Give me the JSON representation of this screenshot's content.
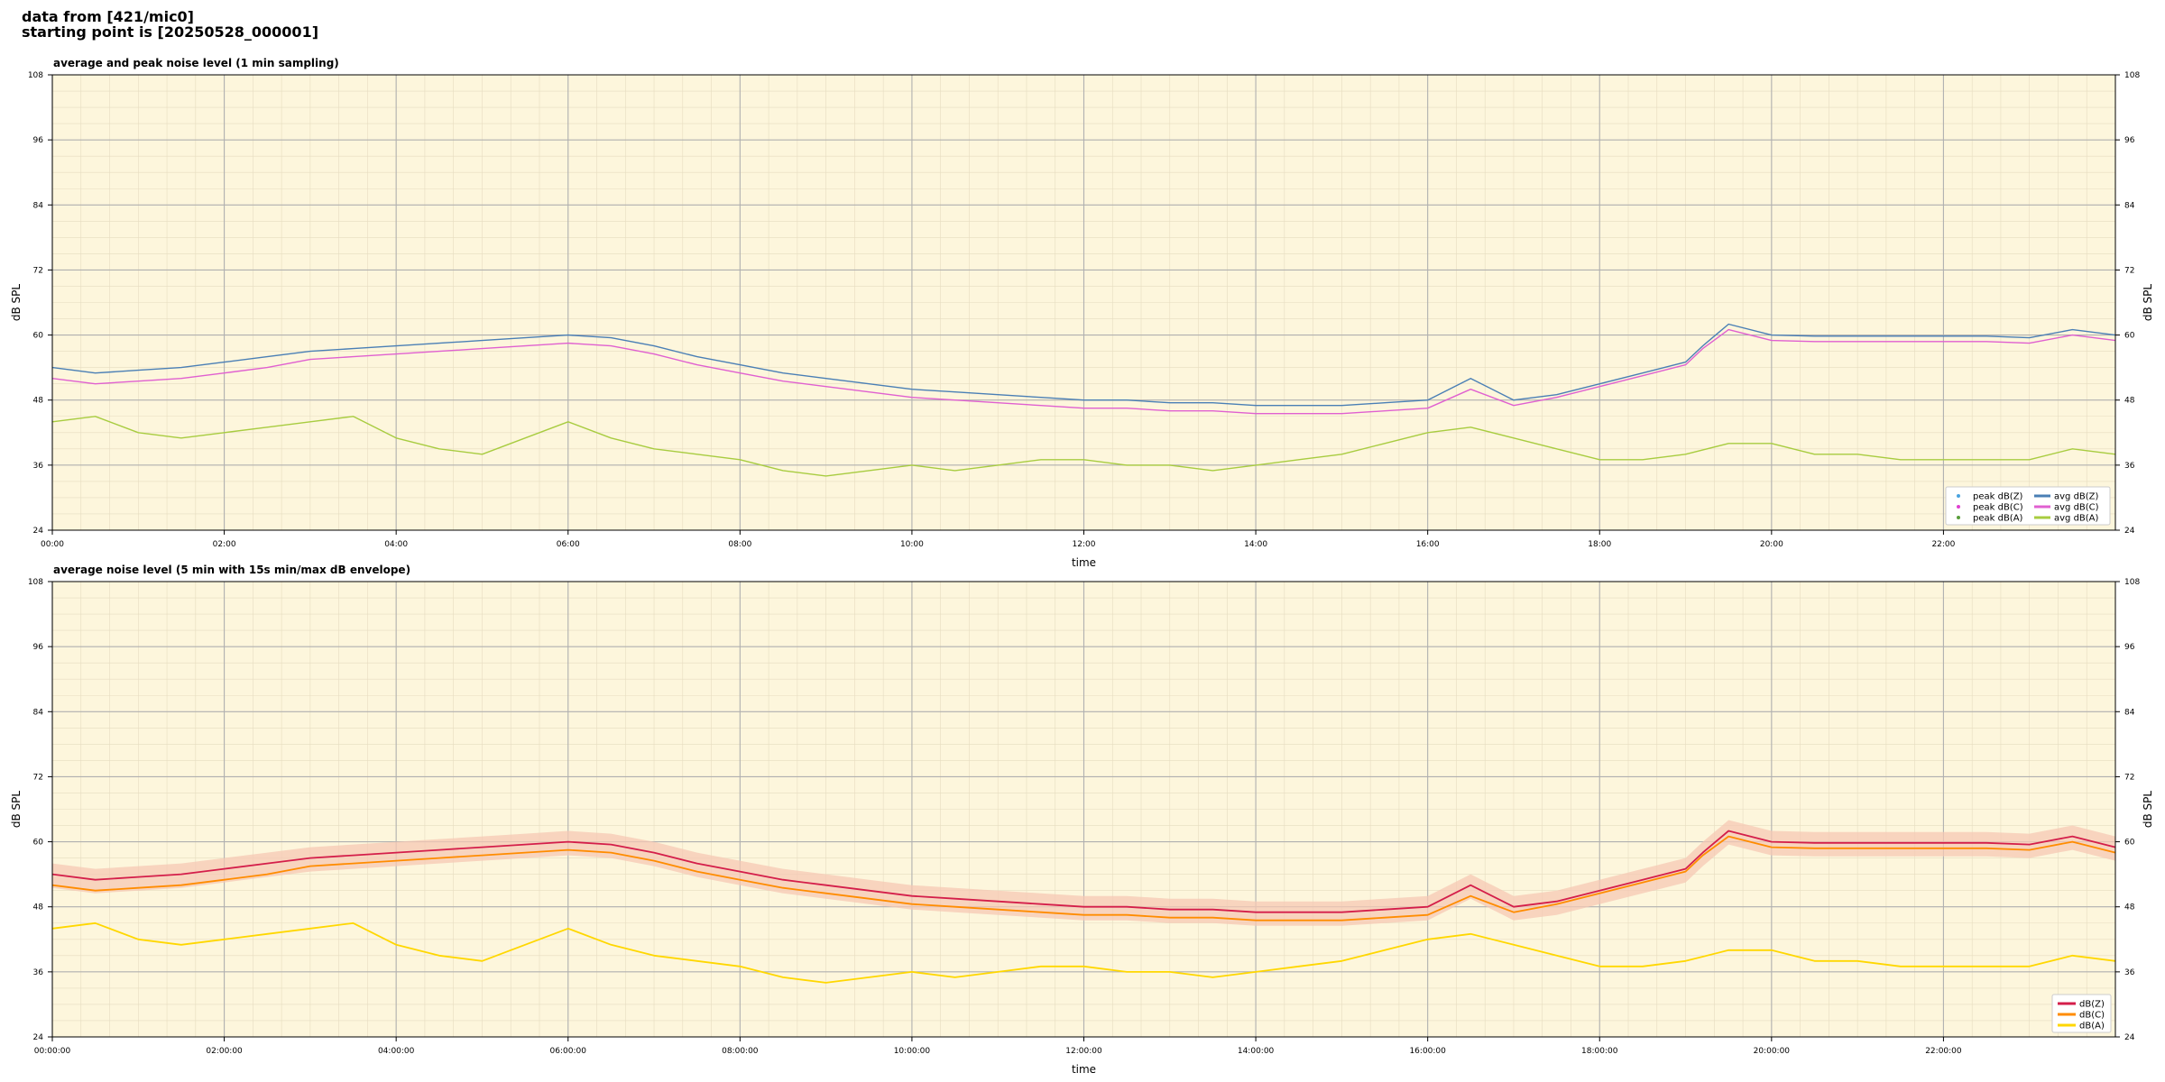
{
  "header": {
    "line1": "data from [421/mic0]",
    "line2": "starting point is [20250528_000001]"
  },
  "colors": {
    "background": "#fdf6dc",
    "peak_z": "#4aa3df",
    "peak_c": "#e040d0",
    "peak_a": "#5a9e3a",
    "avg_z": "#4a7fb5",
    "avg_c": "#e060d0",
    "avg_a": "#a8cc40",
    "db_z": "#d41e4a",
    "db_c": "#ff8c00",
    "db_a": "#ffd700",
    "envelope": "#f6c8b4"
  },
  "chart_data": [
    {
      "type": "line",
      "title": "average and peak noise level (1 min sampling)",
      "xlabel": "time",
      "ylabel": "dB SPL",
      "xlim_hours": [
        0,
        24
      ],
      "ylim": [
        24,
        108
      ],
      "y_ticks": [
        "24",
        "36",
        "48",
        "60",
        "72",
        "84",
        "96",
        "108"
      ],
      "x_ticks": [
        "00:00",
        "02:00",
        "04:00",
        "06:00",
        "08:00",
        "10:00",
        "12:00",
        "14:00",
        "16:00",
        "18:00",
        "20:00",
        "22:00"
      ],
      "grid": true,
      "legend": "bottom-right",
      "legend_entries": [
        "peak dB(Z)",
        "peak dB(C)",
        "peak dB(A)",
        "avg dB(Z)",
        "avg dB(C)",
        "avg dB(A)"
      ],
      "series": [
        {
          "name": "avg dB(Z)",
          "x_hours": [
            0,
            0.5,
            1,
            1.5,
            2,
            2.5,
            3,
            3.5,
            4,
            4.5,
            5,
            5.5,
            6,
            6.5,
            7,
            7.5,
            8,
            8.5,
            9,
            9.5,
            10,
            10.5,
            11,
            11.5,
            12,
            12.5,
            13,
            13.5,
            14,
            14.5,
            15,
            15.5,
            16,
            16.5,
            17,
            17.5,
            18,
            18.5,
            19,
            19.2,
            19.5,
            20,
            20.5,
            21,
            21.5,
            22,
            22.5,
            23,
            23.5,
            24
          ],
          "values": [
            54,
            53,
            53.5,
            54,
            55,
            56,
            57,
            57.5,
            58,
            58.5,
            59,
            59.5,
            60,
            59.5,
            58,
            56,
            54.5,
            53,
            52,
            51,
            50,
            49.5,
            49,
            48.5,
            48,
            48,
            47.5,
            47.5,
            47,
            47,
            47,
            47.5,
            48,
            52,
            48,
            49,
            51,
            53,
            55,
            58,
            62,
            60,
            59.8,
            59.8,
            59.8,
            59.8,
            59.8,
            59.5,
            61,
            60
          ]
        },
        {
          "name": "avg dB(C)",
          "x_hours": [
            0,
            0.5,
            1,
            1.5,
            2,
            2.5,
            3,
            3.5,
            4,
            4.5,
            5,
            5.5,
            6,
            6.5,
            7,
            7.5,
            8,
            8.5,
            9,
            9.5,
            10,
            10.5,
            11,
            11.5,
            12,
            12.5,
            13,
            13.5,
            14,
            14.5,
            15,
            15.5,
            16,
            16.5,
            17,
            17.5,
            18,
            18.5,
            19,
            19.2,
            19.5,
            20,
            20.5,
            21,
            21.5,
            22,
            22.5,
            23,
            23.5,
            24
          ],
          "values": [
            52,
            51,
            51.5,
            52,
            53,
            54,
            55.5,
            56,
            56.5,
            57,
            57.5,
            58,
            58.5,
            58,
            56.5,
            54.5,
            53,
            51.5,
            50.5,
            49.5,
            48.5,
            48,
            47.5,
            47,
            46.5,
            46.5,
            46,
            46,
            45.5,
            45.5,
            45.5,
            46,
            46.5,
            50,
            47,
            48.5,
            50.5,
            52.5,
            54.5,
            57.5,
            61,
            59,
            58.8,
            58.8,
            58.8,
            58.8,
            58.8,
            58.5,
            60,
            59
          ]
        },
        {
          "name": "avg dB(A)",
          "x_hours": [
            0,
            0.5,
            1,
            1.5,
            2,
            2.5,
            3,
            3.5,
            4,
            4.5,
            5,
            5.5,
            6,
            6.5,
            7,
            7.5,
            8,
            8.5,
            9,
            9.5,
            10,
            10.5,
            11,
            11.5,
            12,
            12.5,
            13,
            13.5,
            14,
            14.5,
            15,
            15.5,
            16,
            16.5,
            17,
            17.5,
            18,
            18.5,
            19,
            19.5,
            20,
            20.5,
            21,
            21.5,
            22,
            22.5,
            23,
            23.5,
            24
          ],
          "values": [
            44,
            45,
            42,
            41,
            42,
            43,
            44,
            45,
            41,
            39,
            38,
            41,
            44,
            41,
            39,
            38,
            37,
            35,
            34,
            35,
            36,
            35,
            36,
            37,
            37,
            36,
            36,
            35,
            36,
            37,
            38,
            40,
            42,
            43,
            41,
            39,
            37,
            37,
            38,
            40,
            40,
            38,
            38,
            37,
            37,
            37,
            37,
            39,
            38
          ]
        }
      ]
    },
    {
      "type": "line",
      "title": "average noise level (5 min with 15s min/max dB envelope)",
      "xlabel": "time",
      "ylabel": "dB SPL",
      "xlim_hours": [
        0,
        24
      ],
      "ylim": [
        24,
        108
      ],
      "y_ticks": [
        "24",
        "36",
        "48",
        "60",
        "72",
        "84",
        "96",
        "108"
      ],
      "x_ticks": [
        "00:00:00",
        "02:00:00",
        "04:00:00",
        "06:00:00",
        "08:00:00",
        "10:00:00",
        "12:00:00",
        "14:00:00",
        "16:00:00",
        "18:00:00",
        "20:00:00",
        "22:00:00"
      ],
      "grid": true,
      "legend": "bottom-right",
      "legend_entries": [
        "dB(Z)",
        "dB(C)",
        "dB(A)"
      ],
      "series": [
        {
          "name": "dB(Z)",
          "x_hours": [
            0,
            0.5,
            1,
            1.5,
            2,
            2.5,
            3,
            3.5,
            4,
            4.5,
            5,
            5.5,
            6,
            6.5,
            7,
            7.5,
            8,
            8.5,
            9,
            9.5,
            10,
            10.5,
            11,
            11.5,
            12,
            12.5,
            13,
            13.5,
            14,
            14.5,
            15,
            15.5,
            16,
            16.5,
            17,
            17.5,
            18,
            18.5,
            19,
            19.2,
            19.5,
            20,
            20.5,
            21,
            21.5,
            22,
            22.5,
            23,
            23.5,
            24
          ],
          "values": [
            54,
            53,
            53.5,
            54,
            55,
            56,
            57,
            57.5,
            58,
            58.5,
            59,
            59.5,
            60,
            59.5,
            58,
            56,
            54.5,
            53,
            52,
            51,
            50,
            49.5,
            49,
            48.5,
            48,
            48,
            47.5,
            47.5,
            47,
            47,
            47,
            47.5,
            48,
            52,
            48,
            49,
            51,
            53,
            55,
            58,
            62,
            60,
            59.8,
            59.8,
            59.8,
            59.8,
            59.8,
            59.5,
            61,
            59
          ]
        },
        {
          "name": "dB(C)",
          "x_hours": [
            0,
            0.5,
            1,
            1.5,
            2,
            2.5,
            3,
            3.5,
            4,
            4.5,
            5,
            5.5,
            6,
            6.5,
            7,
            7.5,
            8,
            8.5,
            9,
            9.5,
            10,
            10.5,
            11,
            11.5,
            12,
            12.5,
            13,
            13.5,
            14,
            14.5,
            15,
            15.5,
            16,
            16.5,
            17,
            17.5,
            18,
            18.5,
            19,
            19.2,
            19.5,
            20,
            20.5,
            21,
            21.5,
            22,
            22.5,
            23,
            23.5,
            24
          ],
          "values": [
            52,
            51,
            51.5,
            52,
            53,
            54,
            55.5,
            56,
            56.5,
            57,
            57.5,
            58,
            58.5,
            58,
            56.5,
            54.5,
            53,
            51.5,
            50.5,
            49.5,
            48.5,
            48,
            47.5,
            47,
            46.5,
            46.5,
            46,
            46,
            45.5,
            45.5,
            45.5,
            46,
            46.5,
            50,
            47,
            48.5,
            50.5,
            52.5,
            54.5,
            57.5,
            61,
            59,
            58.8,
            58.8,
            58.8,
            58.8,
            58.8,
            58.5,
            60,
            58
          ]
        },
        {
          "name": "dB(A)",
          "x_hours": [
            0,
            0.5,
            1,
            1.5,
            2,
            2.5,
            3,
            3.5,
            4,
            4.5,
            5,
            5.5,
            6,
            6.5,
            7,
            7.5,
            8,
            8.5,
            9,
            9.5,
            10,
            10.5,
            11,
            11.5,
            12,
            12.5,
            13,
            13.5,
            14,
            14.5,
            15,
            15.5,
            16,
            16.5,
            17,
            17.5,
            18,
            18.5,
            19,
            19.5,
            20,
            20.5,
            21,
            21.5,
            22,
            22.5,
            23,
            23.5,
            24
          ],
          "values": [
            44,
            45,
            42,
            41,
            42,
            43,
            44,
            45,
            41,
            39,
            38,
            41,
            44,
            41,
            39,
            38,
            37,
            35,
            34,
            35,
            36,
            35,
            36,
            37,
            37,
            36,
            36,
            35,
            36,
            37,
            38,
            40,
            42,
            43,
            41,
            39,
            37,
            37,
            38,
            40,
            40,
            38,
            38,
            37,
            37,
            37,
            37,
            39,
            38
          ]
        }
      ]
    }
  ]
}
